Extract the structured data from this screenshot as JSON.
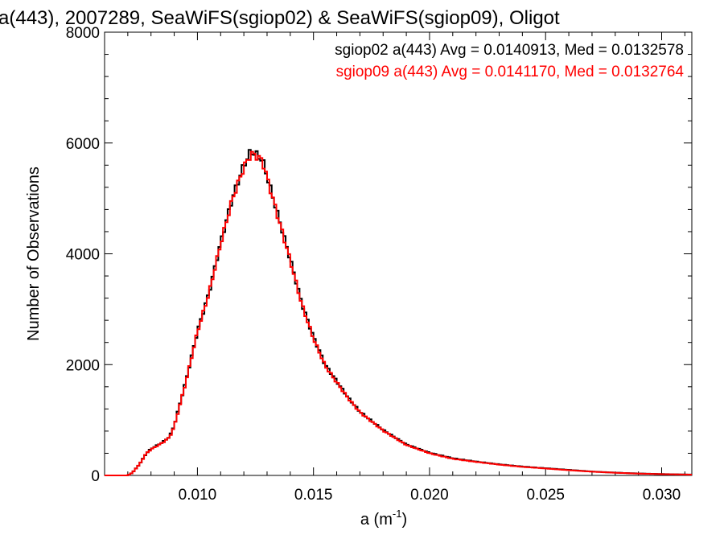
{
  "chart_data": {
    "type": "line",
    "style": "step-histogram",
    "title": "a(443), 2007289, SeaWiFS(sgiop02) & SeaWiFS(sgiop09), Oligot",
    "xlabel": "a (m",
    "xlabel_sup": "-1",
    "xlabel_close": ")",
    "ylabel": "Number of Observations",
    "xlim": [
      0.006,
      0.0313
    ],
    "ylim": [
      0,
      8000
    ],
    "x_ticks": [
      0.01,
      0.015,
      0.02,
      0.025,
      0.03
    ],
    "x_tick_labels": [
      "0.010",
      "0.015",
      "0.020",
      "0.025",
      "0.030"
    ],
    "y_ticks": [
      0,
      2000,
      4000,
      6000,
      8000
    ],
    "y_tick_labels": [
      "0",
      "2000",
      "4000",
      "6000",
      "8000"
    ],
    "legend_position": "top-right",
    "series": [
      {
        "name": "sgiop02",
        "color": "#000000",
        "legend": "sgiop02 a(443) Avg = 0.0140913, Med = 0.0132578",
        "x": [
          0.006,
          0.007,
          0.0072,
          0.0075,
          0.0078,
          0.008,
          0.0085,
          0.0088,
          0.009,
          0.0095,
          0.01,
          0.0105,
          0.011,
          0.0115,
          0.012,
          0.0123,
          0.0125,
          0.0128,
          0.013,
          0.0135,
          0.014,
          0.0145,
          0.015,
          0.0155,
          0.016,
          0.0165,
          0.017,
          0.018,
          0.019,
          0.02,
          0.021,
          0.022,
          0.023,
          0.024,
          0.025,
          0.026,
          0.027,
          0.028,
          0.029,
          0.03,
          0.0313
        ],
        "y": [
          0,
          0,
          50,
          200,
          400,
          480,
          600,
          700,
          900,
          1700,
          2600,
          3300,
          4200,
          5000,
          5600,
          5850,
          5800,
          5700,
          5400,
          4650,
          3900,
          3100,
          2500,
          2000,
          1700,
          1400,
          1150,
          820,
          560,
          410,
          310,
          250,
          200,
          160,
          130,
          100,
          70,
          50,
          35,
          25,
          15
        ]
      },
      {
        "name": "sgiop09",
        "color": "#ff0000",
        "legend": "sgiop09 a(443) Avg = 0.0141170, Med = 0.0132764",
        "x": [
          0.006,
          0.007,
          0.0072,
          0.0075,
          0.0078,
          0.008,
          0.0085,
          0.0088,
          0.009,
          0.0095,
          0.01,
          0.0105,
          0.011,
          0.0115,
          0.012,
          0.0123,
          0.0125,
          0.0128,
          0.013,
          0.0135,
          0.014,
          0.0145,
          0.015,
          0.0155,
          0.016,
          0.0165,
          0.017,
          0.018,
          0.019,
          0.02,
          0.021,
          0.022,
          0.023,
          0.024,
          0.025,
          0.026,
          0.027,
          0.028,
          0.029,
          0.03,
          0.0313
        ],
        "y": [
          0,
          0,
          50,
          200,
          400,
          470,
          590,
          690,
          880,
          1680,
          2590,
          3290,
          4180,
          4980,
          5560,
          5800,
          5780,
          5680,
          5380,
          4620,
          3880,
          3080,
          2470,
          1980,
          1680,
          1390,
          1140,
          810,
          550,
          400,
          300,
          245,
          195,
          155,
          125,
          95,
          68,
          48,
          33,
          23,
          14
        ]
      }
    ]
  }
}
